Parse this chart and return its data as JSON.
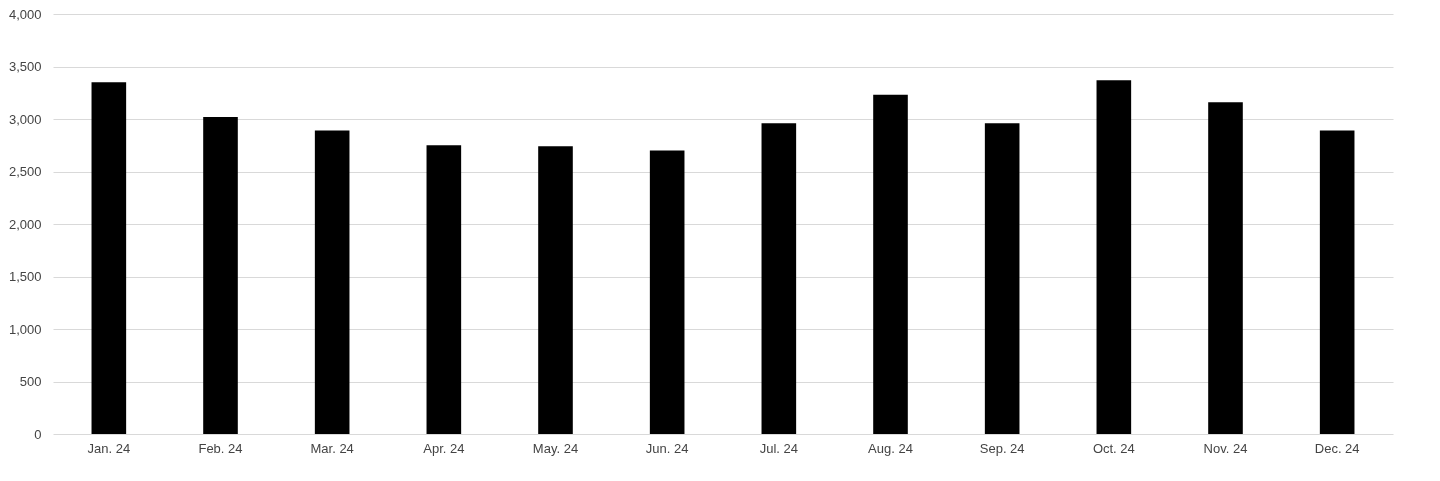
{
  "chart_data": {
    "type": "bar",
    "categories": [
      "Jan. 24",
      "Feb. 24",
      "Mar. 24",
      "Apr. 24",
      "May. 24",
      "Jun. 24",
      "Jul. 24",
      "Aug. 24",
      "Sep. 24",
      "Oct. 24",
      "Nov. 24",
      "Dec. 24"
    ],
    "values": [
      3350,
      3020,
      2890,
      2750,
      2740,
      2700,
      2960,
      3230,
      2960,
      3370,
      3160,
      2890
    ],
    "color": "#000000",
    "ylim": [
      0,
      4000
    ],
    "yticks": [
      {
        "value": 0,
        "label": "0"
      },
      {
        "value": 500,
        "label": "500"
      },
      {
        "value": 1000,
        "label": "1,000"
      },
      {
        "value": 1500,
        "label": "1,500"
      },
      {
        "value": 2000,
        "label": "2,000"
      },
      {
        "value": 2500,
        "label": "2,500"
      },
      {
        "value": 3000,
        "label": "3,000"
      },
      {
        "value": 3500,
        "label": "3,500"
      },
      {
        "value": 4000,
        "label": "4,000"
      }
    ],
    "grid": "y"
  }
}
